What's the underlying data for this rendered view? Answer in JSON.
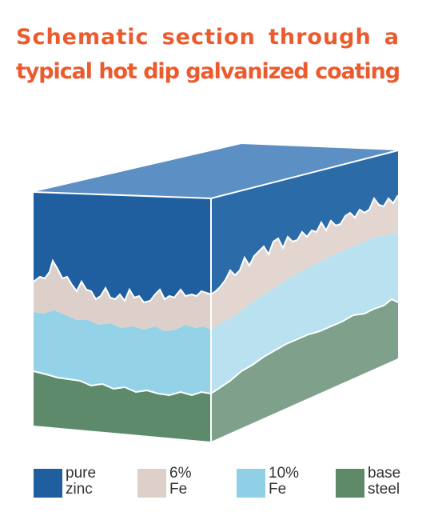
{
  "title": {
    "line1": "Schematic section through a",
    "line2": "typical hot dip galvanized coating"
  },
  "legend": [
    {
      "label": "pure\nzinc",
      "color": "#1f5f9f"
    },
    {
      "label": "6%\nFe",
      "color": "#ddd0cb"
    },
    {
      "label": "10%\nFe",
      "color": "#8fd0e6"
    },
    {
      "label": "base\nsteel",
      "color": "#5e8a6a"
    }
  ],
  "layer_colors": {
    "pure_zinc_front": "#1f5f9f",
    "pure_zinc_side": "#2b6ba8",
    "pure_zinc_top": "#5c8fc4",
    "fe6_front": "#ddd0cb",
    "fe6_side": "#e3d6d1",
    "fe10_front": "#94d2e7",
    "fe10_side": "#b9e1ef",
    "base_steel_front": "#5d8a6b",
    "base_steel_side": "#7fa08a",
    "edge": "#ffffff"
  }
}
